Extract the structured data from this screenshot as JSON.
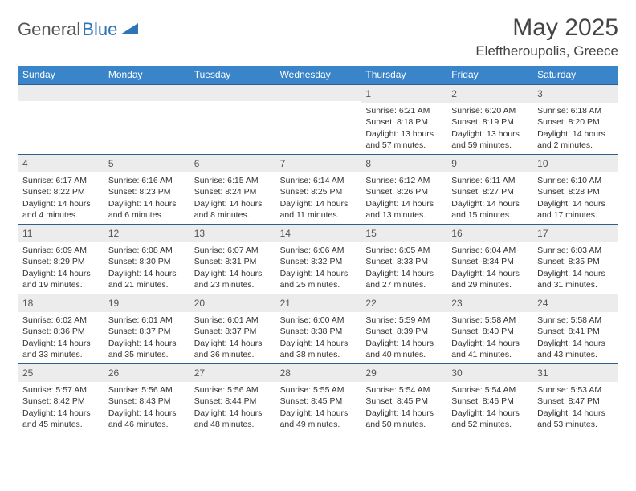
{
  "logo": {
    "text1": "General",
    "text2": "Blue"
  },
  "title": "May 2025",
  "location": "Eleftheroupolis, Greece",
  "colors": {
    "header_bg": "#3a85c9",
    "header_text": "#ffffff",
    "week_border": "#2f5f8f",
    "daynum_bg": "#ececec",
    "logo_blue": "#2f74b5"
  },
  "dayNames": [
    "Sunday",
    "Monday",
    "Tuesday",
    "Wednesday",
    "Thursday",
    "Friday",
    "Saturday"
  ],
  "weeks": [
    [
      {
        "n": "",
        "sr": "",
        "ss": "",
        "dl": ""
      },
      {
        "n": "",
        "sr": "",
        "ss": "",
        "dl": ""
      },
      {
        "n": "",
        "sr": "",
        "ss": "",
        "dl": ""
      },
      {
        "n": "",
        "sr": "",
        "ss": "",
        "dl": ""
      },
      {
        "n": "1",
        "sr": "6:21 AM",
        "ss": "8:18 PM",
        "dl": "13 hours and 57 minutes."
      },
      {
        "n": "2",
        "sr": "6:20 AM",
        "ss": "8:19 PM",
        "dl": "13 hours and 59 minutes."
      },
      {
        "n": "3",
        "sr": "6:18 AM",
        "ss": "8:20 PM",
        "dl": "14 hours and 2 minutes."
      }
    ],
    [
      {
        "n": "4",
        "sr": "6:17 AM",
        "ss": "8:22 PM",
        "dl": "14 hours and 4 minutes."
      },
      {
        "n": "5",
        "sr": "6:16 AM",
        "ss": "8:23 PM",
        "dl": "14 hours and 6 minutes."
      },
      {
        "n": "6",
        "sr": "6:15 AM",
        "ss": "8:24 PM",
        "dl": "14 hours and 8 minutes."
      },
      {
        "n": "7",
        "sr": "6:14 AM",
        "ss": "8:25 PM",
        "dl": "14 hours and 11 minutes."
      },
      {
        "n": "8",
        "sr": "6:12 AM",
        "ss": "8:26 PM",
        "dl": "14 hours and 13 minutes."
      },
      {
        "n": "9",
        "sr": "6:11 AM",
        "ss": "8:27 PM",
        "dl": "14 hours and 15 minutes."
      },
      {
        "n": "10",
        "sr": "6:10 AM",
        "ss": "8:28 PM",
        "dl": "14 hours and 17 minutes."
      }
    ],
    [
      {
        "n": "11",
        "sr": "6:09 AM",
        "ss": "8:29 PM",
        "dl": "14 hours and 19 minutes."
      },
      {
        "n": "12",
        "sr": "6:08 AM",
        "ss": "8:30 PM",
        "dl": "14 hours and 21 minutes."
      },
      {
        "n": "13",
        "sr": "6:07 AM",
        "ss": "8:31 PM",
        "dl": "14 hours and 23 minutes."
      },
      {
        "n": "14",
        "sr": "6:06 AM",
        "ss": "8:32 PM",
        "dl": "14 hours and 25 minutes."
      },
      {
        "n": "15",
        "sr": "6:05 AM",
        "ss": "8:33 PM",
        "dl": "14 hours and 27 minutes."
      },
      {
        "n": "16",
        "sr": "6:04 AM",
        "ss": "8:34 PM",
        "dl": "14 hours and 29 minutes."
      },
      {
        "n": "17",
        "sr": "6:03 AM",
        "ss": "8:35 PM",
        "dl": "14 hours and 31 minutes."
      }
    ],
    [
      {
        "n": "18",
        "sr": "6:02 AM",
        "ss": "8:36 PM",
        "dl": "14 hours and 33 minutes."
      },
      {
        "n": "19",
        "sr": "6:01 AM",
        "ss": "8:37 PM",
        "dl": "14 hours and 35 minutes."
      },
      {
        "n": "20",
        "sr": "6:01 AM",
        "ss": "8:37 PM",
        "dl": "14 hours and 36 minutes."
      },
      {
        "n": "21",
        "sr": "6:00 AM",
        "ss": "8:38 PM",
        "dl": "14 hours and 38 minutes."
      },
      {
        "n": "22",
        "sr": "5:59 AM",
        "ss": "8:39 PM",
        "dl": "14 hours and 40 minutes."
      },
      {
        "n": "23",
        "sr": "5:58 AM",
        "ss": "8:40 PM",
        "dl": "14 hours and 41 minutes."
      },
      {
        "n": "24",
        "sr": "5:58 AM",
        "ss": "8:41 PM",
        "dl": "14 hours and 43 minutes."
      }
    ],
    [
      {
        "n": "25",
        "sr": "5:57 AM",
        "ss": "8:42 PM",
        "dl": "14 hours and 45 minutes."
      },
      {
        "n": "26",
        "sr": "5:56 AM",
        "ss": "8:43 PM",
        "dl": "14 hours and 46 minutes."
      },
      {
        "n": "27",
        "sr": "5:56 AM",
        "ss": "8:44 PM",
        "dl": "14 hours and 48 minutes."
      },
      {
        "n": "28",
        "sr": "5:55 AM",
        "ss": "8:45 PM",
        "dl": "14 hours and 49 minutes."
      },
      {
        "n": "29",
        "sr": "5:54 AM",
        "ss": "8:45 PM",
        "dl": "14 hours and 50 minutes."
      },
      {
        "n": "30",
        "sr": "5:54 AM",
        "ss": "8:46 PM",
        "dl": "14 hours and 52 minutes."
      },
      {
        "n": "31",
        "sr": "5:53 AM",
        "ss": "8:47 PM",
        "dl": "14 hours and 53 minutes."
      }
    ]
  ],
  "labels": {
    "sunrise": "Sunrise: ",
    "sunset": "Sunset: ",
    "daylight": "Daylight: "
  }
}
